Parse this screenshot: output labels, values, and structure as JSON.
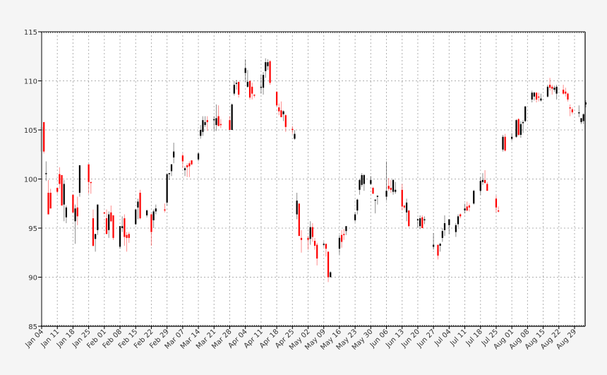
{
  "chart_data": {
    "type": "candlestick",
    "title": "",
    "xlabel": "",
    "ylabel": "",
    "ylim": [
      85,
      115
    ],
    "yticks": [
      85,
      90,
      95,
      100,
      105,
      110,
      115
    ],
    "xticks": [
      "Jan 04",
      "Jan 11",
      "Jan 18",
      "Jan 25",
      "Feb 01",
      "Feb 08",
      "Feb 15",
      "Feb 22",
      "Feb 29",
      "Mar 07",
      "Mar 14",
      "Mar 21",
      "Mar 28",
      "Apr 04",
      "Apr 11",
      "Apr 18",
      "Apr 25",
      "May 02",
      "May 09",
      "May 16",
      "May 23",
      "May 30",
      "Jun 06",
      "Jun 13",
      "Jun 20",
      "Jun 27",
      "Jul 04",
      "Jul 11",
      "Jul 18",
      "Jul 25",
      "Aug 01",
      "Aug 08",
      "Aug 15",
      "Aug 22",
      "Aug 29"
    ],
    "grid": true,
    "colors": {
      "up": "#000000",
      "down": "#ff0000",
      "background": "#ffffff",
      "figure": "#f5f5f5",
      "grid": "#b0b0b0"
    },
    "x_days_range": [
      0,
      243
    ],
    "candles": [
      {
        "d": 0,
        "o": 102.8,
        "h": 105.4,
        "l": 102.6,
        "c": 105.3
      },
      {
        "d": 1,
        "o": 105.8,
        "h": 105.8,
        "l": 102.6,
        "c": 102.8
      },
      {
        "d": 2,
        "o": 100.5,
        "h": 101.8,
        "l": 99.8,
        "c": 100.6
      },
      {
        "d": 3,
        "o": 98.6,
        "h": 99.9,
        "l": 96.4,
        "c": 96.4
      },
      {
        "d": 4,
        "o": 98.6,
        "h": 99.0,
        "l": 97.0,
        "c": 97.0
      },
      {
        "d": 7,
        "o": 99.1,
        "h": 99.1,
        "l": 98.5,
        "c": 98.7
      },
      {
        "d": 8,
        "o": 100.5,
        "h": 101.2,
        "l": 99.0,
        "c": 99.5
      },
      {
        "d": 9,
        "o": 100.4,
        "h": 100.4,
        "l": 97.3,
        "c": 97.3
      },
      {
        "d": 10,
        "o": 97.4,
        "h": 99.9,
        "l": 95.7,
        "c": 99.5
      },
      {
        "d": 11,
        "o": 96.1,
        "h": 97.3,
        "l": 95.5,
        "c": 97.1
      },
      {
        "d": 14,
        "o": 98.4,
        "h": 98.4,
        "l": 96.5,
        "c": 96.6
      },
      {
        "d": 15,
        "o": 95.7,
        "h": 97.4,
        "l": 93.4,
        "c": 97.0
      },
      {
        "d": 16,
        "o": 97.1,
        "h": 98.2,
        "l": 95.3,
        "c": 96.2
      },
      {
        "d": 17,
        "o": 98.6,
        "h": 101.4,
        "l": 98.2,
        "c": 101.4
      },
      {
        "d": 21,
        "o": 101.5,
        "h": 101.5,
        "l": 98.5,
        "c": 99.7
      },
      {
        "d": 22,
        "o": 99.7,
        "h": 99.7,
        "l": 98.5,
        "c": 99.6
      },
      {
        "d": 23,
        "o": 96.0,
        "h": 96.9,
        "l": 93.1,
        "c": 93.2
      },
      {
        "d": 24,
        "o": 93.9,
        "h": 94.4,
        "l": 92.6,
        "c": 94.4
      },
      {
        "d": 25,
        "o": 94.8,
        "h": 97.4,
        "l": 94.3,
        "c": 97.4
      },
      {
        "d": 28,
        "o": 96.6,
        "h": 96.6,
        "l": 96.4,
        "c": 96.5
      },
      {
        "d": 29,
        "o": 96.0,
        "h": 96.9,
        "l": 94.4,
        "c": 94.4
      },
      {
        "d": 30,
        "o": 94.8,
        "h": 96.7,
        "l": 94.0,
        "c": 96.4
      },
      {
        "d": 31,
        "o": 96.6,
        "h": 97.3,
        "l": 95.6,
        "c": 95.7
      },
      {
        "d": 32,
        "o": 96.3,
        "h": 96.3,
        "l": 93.8,
        "c": 94.0
      },
      {
        "d": 35,
        "o": 93.1,
        "h": 95.2,
        "l": 92.9,
        "c": 95.2
      },
      {
        "d": 36,
        "o": 95.0,
        "h": 96.2,
        "l": 94.6,
        "c": 95.2
      },
      {
        "d": 37,
        "o": 96.0,
        "h": 96.4,
        "l": 93.2,
        "c": 94.1
      },
      {
        "d": 38,
        "o": 94.3,
        "h": 94.6,
        "l": 92.6,
        "c": 94.0
      },
      {
        "d": 39,
        "o": 94.4,
        "h": 94.6,
        "l": 93.5,
        "c": 94.0
      },
      {
        "d": 42,
        "o": 95.4,
        "h": 96.9,
        "l": 95.3,
        "c": 96.9
      },
      {
        "d": 43,
        "o": 97.1,
        "h": 98.0,
        "l": 95.9,
        "c": 97.7
      },
      {
        "d": 44,
        "o": 98.6,
        "h": 98.9,
        "l": 95.9,
        "c": 96.0
      },
      {
        "d": 47,
        "o": 96.3,
        "h": 96.9,
        "l": 96.1,
        "c": 96.8
      },
      {
        "d": 49,
        "o": 96.4,
        "h": 96.5,
        "l": 93.2,
        "c": 94.6
      },
      {
        "d": 50,
        "o": 95.8,
        "h": 96.9,
        "l": 95.0,
        "c": 96.7
      },
      {
        "d": 51,
        "o": 96.7,
        "h": 97.4,
        "l": 96.4,
        "c": 97.0
      },
      {
        "d": 55,
        "o": 96.9,
        "h": 97.5,
        "l": 96.6,
        "c": 96.8
      },
      {
        "d": 56,
        "o": 97.6,
        "h": 100.5,
        "l": 97.3,
        "c": 100.5
      },
      {
        "d": 57,
        "o": 100.5,
        "h": 100.6,
        "l": 99.9,
        "c": 100.6
      },
      {
        "d": 58,
        "o": 100.8,
        "h": 101.5,
        "l": 100.3,
        "c": 101.5
      },
      {
        "d": 59,
        "o": 102.2,
        "h": 103.7,
        "l": 101.6,
        "c": 102.8
      },
      {
        "d": 63,
        "o": 102.4,
        "h": 102.6,
        "l": 101.1,
        "c": 101.8
      },
      {
        "d": 64,
        "o": 100.9,
        "h": 101.3,
        "l": 100.3,
        "c": 101.1
      },
      {
        "d": 65,
        "o": 101.4,
        "h": 101.6,
        "l": 100.2,
        "c": 101.2
      },
      {
        "d": 66,
        "o": 101.6,
        "h": 101.8,
        "l": 100.2,
        "c": 101.3
      },
      {
        "d": 67,
        "o": 101.9,
        "h": 101.9,
        "l": 101.4,
        "c": 101.5
      },
      {
        "d": 70,
        "o": 102.0,
        "h": 102.7,
        "l": 101.8,
        "c": 102.6
      },
      {
        "d": 71,
        "o": 104.4,
        "h": 105.5,
        "l": 104.1,
        "c": 105.0
      },
      {
        "d": 72,
        "o": 104.8,
        "h": 106.4,
        "l": 104.4,
        "c": 106.0
      },
      {
        "d": 73,
        "o": 105.5,
        "h": 106.4,
        "l": 105.3,
        "c": 105.8
      },
      {
        "d": 74,
        "o": 106.0,
        "h": 106.4,
        "l": 104.9,
        "c": 105.8
      },
      {
        "d": 77,
        "o": 106.0,
        "h": 106.4,
        "l": 104.9,
        "c": 106.1
      },
      {
        "d": 78,
        "o": 105.5,
        "h": 107.6,
        "l": 104.9,
        "c": 106.2
      },
      {
        "d": 79,
        "o": 106.4,
        "h": 107.5,
        "l": 105.4,
        "c": 105.4
      },
      {
        "d": 80,
        "o": 105.6,
        "h": 106.1,
        "l": 105.2,
        "c": 105.5
      },
      {
        "d": 84,
        "o": 106.0,
        "h": 106.4,
        "l": 105.1,
        "c": 105.0
      },
      {
        "d": 85,
        "o": 105.0,
        "h": 107.7,
        "l": 105.0,
        "c": 107.6
      },
      {
        "d": 86,
        "o": 108.7,
        "h": 110.0,
        "l": 108.5,
        "c": 109.6
      },
      {
        "d": 87,
        "o": 109.7,
        "h": 110.1,
        "l": 109.1,
        "c": 109.8
      },
      {
        "d": 88,
        "o": 109.9,
        "h": 109.9,
        "l": 108.3,
        "c": 108.6
      },
      {
        "d": 91,
        "o": 110.8,
        "h": 112.2,
        "l": 109.9,
        "c": 111.3
      },
      {
        "d": 92,
        "o": 109.4,
        "h": 111.1,
        "l": 109.3,
        "c": 109.9
      },
      {
        "d": 93,
        "o": 110.0,
        "h": 110.0,
        "l": 108.1,
        "c": 108.3
      },
      {
        "d": 94,
        "o": 109.4,
        "h": 109.8,
        "l": 108.1,
        "c": 108.7
      },
      {
        "d": 95,
        "o": 108.6,
        "h": 108.6,
        "l": 108.3,
        "c": 108.5
      },
      {
        "d": 98,
        "o": 109.3,
        "h": 110.6,
        "l": 108.7,
        "c": 109.4
      },
      {
        "d": 99,
        "o": 109.3,
        "h": 110.9,
        "l": 108.6,
        "c": 110.6
      },
      {
        "d": 100,
        "o": 111.0,
        "h": 112.3,
        "l": 110.3,
        "c": 111.9
      },
      {
        "d": 101,
        "o": 111.5,
        "h": 112.2,
        "l": 111.1,
        "c": 111.9
      },
      {
        "d": 102,
        "o": 112.0,
        "h": 112.1,
        "l": 109.6,
        "c": 109.8
      },
      {
        "d": 105,
        "o": 108.9,
        "h": 108.9,
        "l": 107.4,
        "c": 107.5
      },
      {
        "d": 106,
        "o": 107.3,
        "h": 107.7,
        "l": 106.5,
        "c": 106.9
      },
      {
        "d": 107,
        "o": 107.0,
        "h": 107.9,
        "l": 106.3,
        "c": 106.3
      },
      {
        "d": 108,
        "o": 106.6,
        "h": 107.0,
        "l": 105.9,
        "c": 106.9
      },
      {
        "d": 109,
        "o": 106.5,
        "h": 106.6,
        "l": 104.8,
        "c": 105.3
      },
      {
        "d": 112,
        "o": 105.1,
        "h": 105.4,
        "l": 104.6,
        "c": 105.0
      },
      {
        "d": 113,
        "o": 104.1,
        "h": 105.0,
        "l": 104.0,
        "c": 104.6
      },
      {
        "d": 114,
        "o": 96.4,
        "h": 98.6,
        "l": 95.9,
        "c": 97.8
      },
      {
        "d": 115,
        "o": 97.5,
        "h": 97.5,
        "l": 94.2,
        "c": 94.2
      },
      {
        "d": 116,
        "o": 94.0,
        "h": 94.8,
        "l": 92.5,
        "c": 93.8
      },
      {
        "d": 119,
        "o": 94.0,
        "h": 94.2,
        "l": 92.8,
        "c": 93.8
      },
      {
        "d": 120,
        "o": 93.9,
        "h": 95.7,
        "l": 93.3,
        "c": 95.1
      },
      {
        "d": 121,
        "o": 95.1,
        "h": 95.5,
        "l": 93.6,
        "c": 94.1
      },
      {
        "d": 122,
        "o": 93.7,
        "h": 94.0,
        "l": 92.8,
        "c": 93.2
      },
      {
        "d": 123,
        "o": 93.3,
        "h": 93.5,
        "l": 91.2,
        "c": 91.9
      },
      {
        "d": 126,
        "o": 93.3,
        "h": 93.6,
        "l": 93.1,
        "c": 93.4
      },
      {
        "d": 127,
        "o": 93.4,
        "h": 93.4,
        "l": 92.1,
        "c": 92.9
      },
      {
        "d": 128,
        "o": 92.6,
        "h": 92.6,
        "l": 89.5,
        "c": 90.0
      },
      {
        "d": 129,
        "o": 90.0,
        "h": 90.6,
        "l": 90.0,
        "c": 90.5
      },
      {
        "d": 133,
        "o": 92.9,
        "h": 94.3,
        "l": 92.3,
        "c": 94.0
      },
      {
        "d": 134,
        "o": 94.3,
        "h": 94.8,
        "l": 93.0,
        "c": 93.6
      },
      {
        "d": 135,
        "o": 94.4,
        "h": 94.9,
        "l": 93.8,
        "c": 94.3
      },
      {
        "d": 136,
        "o": 94.7,
        "h": 95.2,
        "l": 94.3,
        "c": 95.2
      },
      {
        "d": 140,
        "o": 95.8,
        "h": 96.6,
        "l": 95.6,
        "c": 96.4
      },
      {
        "d": 141,
        "o": 96.8,
        "h": 98.0,
        "l": 96.4,
        "c": 97.9
      },
      {
        "d": 142,
        "o": 98.9,
        "h": 100.0,
        "l": 98.4,
        "c": 99.9
      },
      {
        "d": 143,
        "o": 99.4,
        "h": 100.6,
        "l": 99.2,
        "c": 100.4
      },
      {
        "d": 144,
        "o": 99.5,
        "h": 100.5,
        "l": 98.8,
        "c": 100.4
      },
      {
        "d": 147,
        "o": 99.5,
        "h": 100.3,
        "l": 99.4,
        "c": 99.9
      },
      {
        "d": 148,
        "o": 99.1,
        "h": 99.2,
        "l": 98.5,
        "c": 98.5
      },
      {
        "d": 149,
        "o": 97.9,
        "h": 97.9,
        "l": 96.5,
        "c": 97.9
      },
      {
        "d": 150,
        "o": 98.2,
        "h": 98.3,
        "l": 97.4,
        "c": 98.3
      },
      {
        "d": 154,
        "o": 98.2,
        "h": 101.8,
        "l": 97.8,
        "c": 98.8
      },
      {
        "d": 155,
        "o": 99.3,
        "h": 100.1,
        "l": 98.8,
        "c": 99.0
      },
      {
        "d": 156,
        "o": 99.1,
        "h": 99.9,
        "l": 98.6,
        "c": 98.9
      },
      {
        "d": 157,
        "o": 98.7,
        "h": 100.0,
        "l": 98.4,
        "c": 99.9
      },
      {
        "d": 158,
        "o": 98.7,
        "h": 99.7,
        "l": 98.5,
        "c": 98.9
      },
      {
        "d": 161,
        "o": 98.9,
        "h": 99.5,
        "l": 96.8,
        "c": 97.2
      },
      {
        "d": 162,
        "o": 97.3,
        "h": 97.3,
        "l": 96.9,
        "c": 97.1
      },
      {
        "d": 163,
        "o": 96.6,
        "h": 98.0,
        "l": 95.7,
        "c": 97.6
      },
      {
        "d": 164,
        "o": 96.8,
        "h": 96.8,
        "l": 95.1,
        "c": 95.2
      },
      {
        "d": 168,
        "o": 95.8,
        "h": 96.0,
        "l": 95.0,
        "c": 95.9
      },
      {
        "d": 169,
        "o": 95.2,
        "h": 96.3,
        "l": 94.9,
        "c": 96.0
      },
      {
        "d": 170,
        "o": 96.1,
        "h": 96.3,
        "l": 95.0,
        "c": 95.0
      },
      {
        "d": 171,
        "o": 95.9,
        "h": 96.2,
        "l": 95.4,
        "c": 95.9
      },
      {
        "d": 175,
        "o": 93.1,
        "h": 94.5,
        "l": 92.8,
        "c": 93.3
      },
      {
        "d": 177,
        "o": 93.3,
        "h": 93.3,
        "l": 91.8,
        "c": 92.2
      },
      {
        "d": 178,
        "o": 93.2,
        "h": 93.5,
        "l": 92.6,
        "c": 93.4
      },
      {
        "d": 179,
        "o": 94.0,
        "h": 95.0,
        "l": 93.6,
        "c": 94.7
      },
      {
        "d": 180,
        "o": 94.8,
        "h": 96.3,
        "l": 94.2,
        "c": 95.5
      },
      {
        "d": 182,
        "o": 95.3,
        "h": 95.9,
        "l": 94.4,
        "c": 95.9
      },
      {
        "d": 185,
        "o": 94.6,
        "h": 95.5,
        "l": 94.1,
        "c": 95.3
      },
      {
        "d": 186,
        "o": 95.4,
        "h": 96.4,
        "l": 95.1,
        "c": 96.2
      },
      {
        "d": 187,
        "o": 96.4,
        "h": 96.5,
        "l": 96.0,
        "c": 96.2
      },
      {
        "d": 189,
        "o": 96.8,
        "h": 97.5,
        "l": 96.5,
        "c": 97.0
      },
      {
        "d": 190,
        "o": 97.2,
        "h": 97.7,
        "l": 96.7,
        "c": 96.8
      },
      {
        "d": 191,
        "o": 97.3,
        "h": 97.5,
        "l": 96.7,
        "c": 97.1
      },
      {
        "d": 193,
        "o": 97.5,
        "h": 98.9,
        "l": 97.4,
        "c": 98.8
      },
      {
        "d": 196,
        "o": 98.8,
        "h": 100.2,
        "l": 98.4,
        "c": 99.8
      },
      {
        "d": 197,
        "o": 99.7,
        "h": 100.6,
        "l": 99.4,
        "c": 99.9
      },
      {
        "d": 198,
        "o": 99.9,
        "h": 100.9,
        "l": 99.5,
        "c": 99.6
      },
      {
        "d": 199,
        "o": 99.5,
        "h": 99.7,
        "l": 98.8,
        "c": 98.8
      },
      {
        "d": 203,
        "o": 98.0,
        "h": 98.3,
        "l": 96.6,
        "c": 97.1
      },
      {
        "d": 204,
        "o": 96.8,
        "h": 97.2,
        "l": 96.6,
        "c": 96.7
      },
      {
        "d": 206,
        "o": 103.0,
        "h": 104.5,
        "l": 102.8,
        "c": 104.3
      },
      {
        "d": 207,
        "o": 104.3,
        "h": 104.6,
        "l": 102.8,
        "c": 102.9
      },
      {
        "d": 210,
        "o": 104.1,
        "h": 104.7,
        "l": 103.9,
        "c": 104.3
      },
      {
        "d": 212,
        "o": 104.3,
        "h": 106.1,
        "l": 104.2,
        "c": 106.0
      },
      {
        "d": 213,
        "o": 106.1,
        "h": 106.2,
        "l": 104.4,
        "c": 104.5
      },
      {
        "d": 214,
        "o": 104.5,
        "h": 105.9,
        "l": 104.2,
        "c": 105.6
      },
      {
        "d": 215,
        "o": 105.8,
        "h": 106.0,
        "l": 104.7,
        "c": 105.8
      },
      {
        "d": 216,
        "o": 105.9,
        "h": 107.4,
        "l": 105.8,
        "c": 107.4
      },
      {
        "d": 219,
        "o": 108.1,
        "h": 109.0,
        "l": 107.8,
        "c": 108.8
      },
      {
        "d": 220,
        "o": 108.4,
        "h": 108.9,
        "l": 108.0,
        "c": 108.8
      },
      {
        "d": 221,
        "o": 108.8,
        "h": 108.8,
        "l": 107.8,
        "c": 108.1
      },
      {
        "d": 222,
        "o": 108.4,
        "h": 108.8,
        "l": 107.9,
        "c": 108.3
      },
      {
        "d": 223,
        "o": 108.0,
        "h": 108.7,
        "l": 107.9,
        "c": 108.2
      },
      {
        "d": 226,
        "o": 108.4,
        "h": 109.6,
        "l": 108.3,
        "c": 109.4
      },
      {
        "d": 227,
        "o": 109.6,
        "h": 110.3,
        "l": 109.0,
        "c": 109.3
      },
      {
        "d": 228,
        "o": 109.4,
        "h": 109.6,
        "l": 108.6,
        "c": 109.2
      },
      {
        "d": 229,
        "o": 109.1,
        "h": 109.5,
        "l": 108.9,
        "c": 109.3
      },
      {
        "d": 230,
        "o": 108.7,
        "h": 109.6,
        "l": 108.1,
        "c": 109.4
      },
      {
        "d": 233,
        "o": 109.1,
        "h": 109.6,
        "l": 108.6,
        "c": 108.7
      },
      {
        "d": 234,
        "o": 108.9,
        "h": 109.3,
        "l": 108.4,
        "c": 108.7
      },
      {
        "d": 235,
        "o": 108.7,
        "h": 108.8,
        "l": 107.9,
        "c": 108.1
      },
      {
        "d": 236,
        "o": 107.3,
        "h": 107.6,
        "l": 106.4,
        "c": 107.2
      },
      {
        "d": 237,
        "o": 107.1,
        "h": 107.3,
        "l": 106.6,
        "c": 106.8
      },
      {
        "d": 240,
        "o": 106.7,
        "h": 107.5,
        "l": 106.3,
        "c": 106.8
      },
      {
        "d": 241,
        "o": 105.8,
        "h": 106.2,
        "l": 105.6,
        "c": 106.2
      },
      {
        "d": 242,
        "o": 105.9,
        "h": 106.7,
        "l": 105.6,
        "c": 106.6
      },
      {
        "d": 243,
        "o": 107.6,
        "h": 108.0,
        "l": 107.3,
        "c": 107.8
      }
    ]
  }
}
